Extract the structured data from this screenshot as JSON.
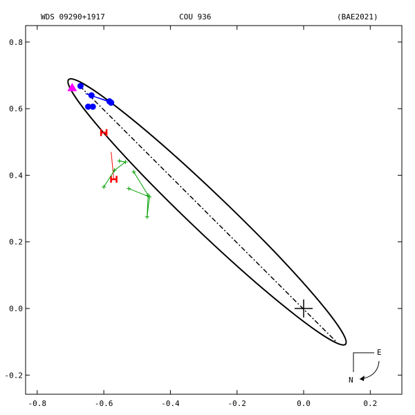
{
  "header": {
    "wds": "WDS 09290+1917",
    "discoverer": "COU 936",
    "reference": "(BAE2021)"
  },
  "compass": {
    "east": "E",
    "north": "N"
  },
  "chart_data": {
    "type": "scatter",
    "title": "",
    "xlabel": "",
    "ylabel": "",
    "xlim": [
      -0.8,
      0.2
    ],
    "ylim": [
      -0.2,
      0.8
    ],
    "xticks": [
      -0.8,
      -0.6,
      -0.4,
      -0.2,
      0.0,
      0.2
    ],
    "yticks": [
      -0.2,
      0.0,
      0.2,
      0.4,
      0.6,
      0.8
    ],
    "xtick_labels": [
      "-0.8",
      "-0.6",
      "-0.4",
      "-0.2",
      "0.0",
      "0.2"
    ],
    "ytick_labels": [
      "-0.2",
      "0.0",
      "0.2",
      "0.4",
      "0.6",
      "0.8"
    ],
    "grid": false,
    "primary": {
      "x": 0.0,
      "y": 0.0,
      "marker": "large-cross"
    },
    "orbit": {
      "color": "#000000",
      "center": [
        -0.29,
        0.29
      ],
      "semi_major": 0.575,
      "semi_minor": 0.058,
      "angle_deg": 136.3
    },
    "line_of_nodes": {
      "style": "dash-dot",
      "from": [
        -0.672,
        0.668
      ],
      "to": [
        0.1,
        -0.102
      ]
    },
    "series": [
      {
        "kind": "micrometer",
        "marker": "filled-circle",
        "color": "#0000ff",
        "points": [
          [
            -0.67,
            0.668
          ],
          [
            -0.637,
            0.64
          ],
          [
            -0.578,
            0.618
          ],
          [
            -0.583,
            0.622
          ],
          [
            -0.647,
            0.606
          ],
          [
            -0.633,
            0.606
          ]
        ],
        "residual_to": [
          [
            -0.67,
            0.662
          ],
          [
            -0.655,
            0.645
          ],
          [
            -0.655,
            0.645
          ],
          [
            -0.655,
            0.645
          ],
          [
            -0.648,
            0.615
          ],
          [
            -0.645,
            0.613
          ]
        ]
      },
      {
        "kind": "speckle",
        "marker": "magenta-triangle",
        "color": "#ff00ff",
        "points": [
          [
            -0.695,
            0.663
          ]
        ]
      },
      {
        "kind": "hipparcos",
        "marker": "H",
        "color": "#ff0000",
        "points": [
          [
            -0.6,
            0.528
          ],
          [
            -0.57,
            0.388
          ]
        ],
        "residual_to": [
          [
            -0.59,
            0.52
          ],
          [
            -0.578,
            0.47
          ]
        ]
      },
      {
        "kind": "proper-motion",
        "marker": "plus",
        "color": "#00a000",
        "paths": [
          [
            [
              -0.6,
              0.365
            ],
            [
              -0.568,
              0.415
            ],
            [
              -0.535,
              0.44
            ],
            [
              -0.553,
              0.443
            ]
          ],
          [
            [
              -0.51,
              0.41
            ],
            [
              -0.467,
              0.34
            ],
            [
              -0.47,
              0.275
            ],
            [
              -0.463,
              0.335
            ],
            [
              -0.525,
              0.36
            ]
          ]
        ]
      }
    ]
  }
}
